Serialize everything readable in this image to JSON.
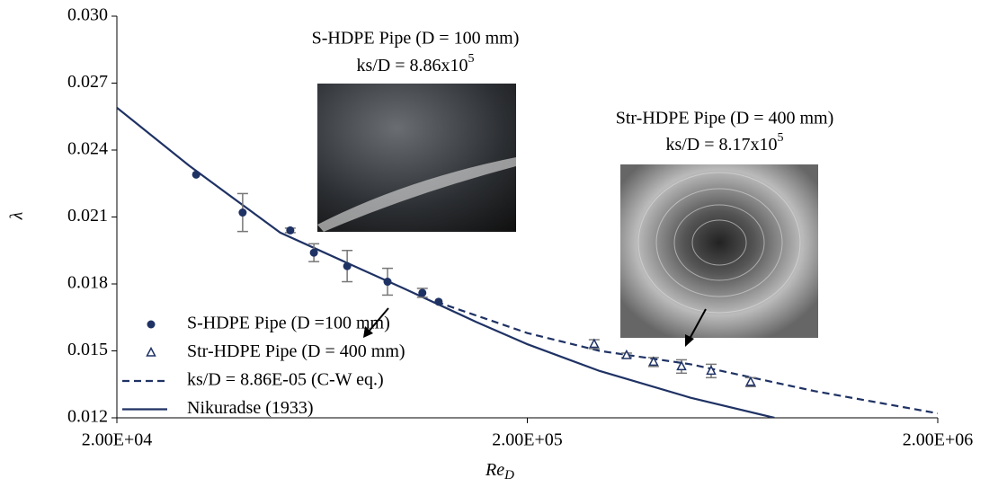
{
  "chart_data": {
    "type": "scatter",
    "xlabel": {
      "text": "Re",
      "subscript": "D"
    },
    "ylabel": "λ",
    "xscale": "log",
    "xlim": [
      20000,
      2000000
    ],
    "ylim": [
      0.012,
      0.03
    ],
    "xticks": [
      {
        "value": 20000,
        "label": "2.00E+04"
      },
      {
        "value": 200000,
        "label": "2.00E+05"
      },
      {
        "value": 2000000,
        "label": "2.00E+06"
      }
    ],
    "yticks": [
      0.012,
      0.015,
      0.018,
      0.021,
      0.024,
      0.027,
      {
        "value": 0.03,
        "label": "0.030"
      }
    ],
    "legend": "lower left",
    "series": [
      {
        "name": "S-HDPE Pipe (D =100 mm)",
        "type": "scatter",
        "marker": "circle",
        "color": "#1f3264",
        "x": [
          31200,
          40500,
          52900,
          60400,
          72800,
          91300,
          111000,
          121600
        ],
        "values": [
          0.0229,
          0.0212,
          0.0204,
          0.0194,
          0.0188,
          0.0181,
          0.0176,
          0.0172
        ],
        "errors": [
          null,
          0.00085,
          0.0001,
          0.0004,
          0.0007,
          0.0006,
          0.0002,
          null
        ]
      },
      {
        "name": "Str-HDPE Pipe (D = 400 mm)",
        "type": "scatter",
        "marker": "triangle",
        "color": "#1f3264",
        "x": [
          291000,
          349000,
          406000,
          475000,
          561000,
          700000
        ],
        "values": [
          0.0153,
          0.0148,
          0.0145,
          0.0143,
          0.0141,
          0.0136
        ],
        "errors": [
          0.0002,
          0.0001,
          0.0002,
          0.0003,
          0.0003,
          0.0002
        ]
      },
      {
        "name": "ks/D = 8.86E-05 (C-W eq.)",
        "type": "line",
        "dashed": true,
        "color": "#1f3264",
        "x": [
          120000,
          200000,
          300000,
          500000,
          1000000,
          2000000
        ],
        "values": [
          0.0172,
          0.0158,
          0.015,
          0.0144,
          0.0132,
          0.0122
        ]
      },
      {
        "name": "Nikuradse (1933)",
        "type": "line",
        "dashed": false,
        "color": "#1f3264",
        "x": [
          20000,
          30000,
          50000,
          80000,
          100000,
          150000,
          200000,
          300000,
          500000,
          800000
        ],
        "values": [
          0.0259,
          0.0233,
          0.0203,
          0.0186,
          0.0178,
          0.0163,
          0.0153,
          0.0141,
          0.0129,
          0.012
        ]
      }
    ],
    "annotations": [
      {
        "title": "S-HDPE Pipe  (D = 100 mm)",
        "ratio": "ks/D = 8.86x10",
        "exponent": "5"
      },
      {
        "title": "Str-HDPE Pipe (D = 400 mm)",
        "ratio": "ks/D = 8.17x10",
        "exponent": "5"
      }
    ]
  }
}
